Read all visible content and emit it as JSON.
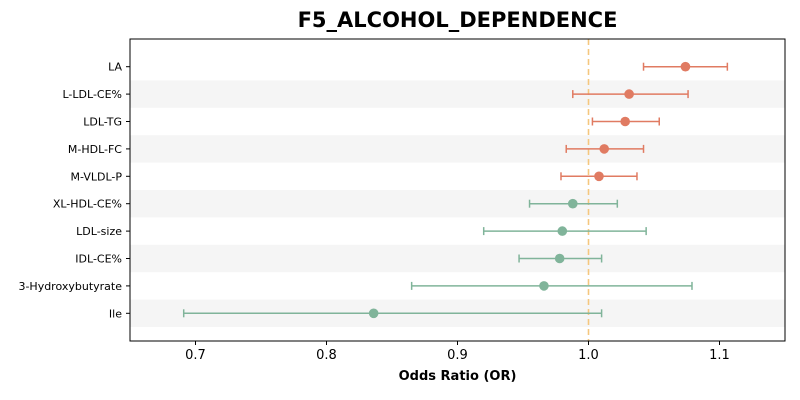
{
  "chart_data": {
    "type": "forest",
    "title": "F5_ALCOHOL_DEPENDENCE",
    "xlabel": "Odds Ratio (OR)",
    "ylabel": "",
    "xlim": [
      0.65,
      1.15
    ],
    "xticks": [
      "0.7",
      "0.8",
      "0.9",
      "1.0",
      "1.1"
    ],
    "reference_line": 1.0,
    "colors": {
      "positive": "#e07b62",
      "negative": "#80b49a",
      "reference": "#f5c77e",
      "band": "#f5f5f5"
    },
    "points": [
      {
        "label": "LA",
        "or": 1.074,
        "lo": 1.042,
        "hi": 1.106
      },
      {
        "label": "L-LDL-CE%",
        "or": 1.031,
        "lo": 0.988,
        "hi": 1.076
      },
      {
        "label": "LDL-TG",
        "or": 1.028,
        "lo": 1.003,
        "hi": 1.054
      },
      {
        "label": "M-HDL-FC",
        "or": 1.012,
        "lo": 0.983,
        "hi": 1.042
      },
      {
        "label": "M-VLDL-P",
        "or": 1.008,
        "lo": 0.979,
        "hi": 1.037
      },
      {
        "label": "XL-HDL-CE%",
        "or": 0.988,
        "lo": 0.955,
        "hi": 1.022
      },
      {
        "label": "LDL-size",
        "or": 0.98,
        "lo": 0.92,
        "hi": 1.044
      },
      {
        "label": "IDL-CE%",
        "or": 0.978,
        "lo": 0.947,
        "hi": 1.01
      },
      {
        "label": "3-Hydroxybutyrate",
        "or": 0.966,
        "lo": 0.865,
        "hi": 1.079
      },
      {
        "label": "Ile",
        "or": 0.836,
        "lo": 0.691,
        "hi": 1.01
      }
    ]
  }
}
